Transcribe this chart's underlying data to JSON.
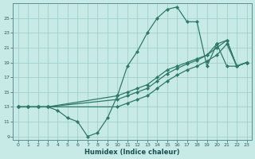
{
  "xlabel": "Humidex (Indice chaleur)",
  "background_color": "#c8eae6",
  "grid_color": "#a0d0cc",
  "line_color": "#2d7a6a",
  "marker": "D",
  "markersize": 2.2,
  "linewidth": 0.9,
  "xlim": [
    -0.5,
    23.5
  ],
  "ylim": [
    8.5,
    27
  ],
  "xticks": [
    0,
    1,
    2,
    3,
    4,
    5,
    6,
    7,
    8,
    9,
    10,
    11,
    12,
    13,
    14,
    15,
    16,
    17,
    18,
    19,
    20,
    21,
    22,
    23
  ],
  "yticks": [
    9,
    11,
    13,
    15,
    17,
    19,
    21,
    23,
    25
  ],
  "lines": [
    {
      "x": [
        0,
        1,
        2,
        3,
        4,
        5,
        6,
        7,
        8,
        9,
        10,
        11,
        12,
        13,
        14,
        15,
        16,
        17,
        18,
        19,
        20,
        21,
        22,
        23
      ],
      "y": [
        13,
        13,
        13,
        13,
        12.5,
        11.5,
        11,
        9,
        9.5,
        11.5,
        14.5,
        18.5,
        20.5,
        23,
        25,
        26.2,
        26.5,
        24.5,
        24.5,
        18.5,
        21.5,
        18.5,
        18.5,
        19
      ]
    },
    {
      "x": [
        0,
        1,
        2,
        3,
        10,
        11,
        12,
        13,
        14,
        15,
        16,
        17,
        18,
        19,
        20,
        21,
        22,
        23
      ],
      "y": [
        13,
        13,
        13,
        13,
        14.5,
        15,
        15.5,
        16,
        17,
        18,
        18.5,
        19,
        19.5,
        20,
        21.5,
        22,
        18.5,
        19
      ]
    },
    {
      "x": [
        0,
        1,
        2,
        3,
        10,
        11,
        12,
        13,
        14,
        15,
        16,
        17,
        18,
        19,
        20,
        21,
        22,
        23
      ],
      "y": [
        13,
        13,
        13,
        13,
        14,
        14.5,
        15,
        15.5,
        16.5,
        17.5,
        18.2,
        18.8,
        19.3,
        20,
        21,
        22,
        18.5,
        19
      ]
    },
    {
      "x": [
        0,
        1,
        2,
        3,
        10,
        11,
        12,
        13,
        14,
        15,
        16,
        17,
        18,
        19,
        20,
        21,
        22,
        23
      ],
      "y": [
        13,
        13,
        13,
        13,
        13,
        13.5,
        14,
        14.5,
        15.5,
        16.5,
        17.3,
        18,
        18.5,
        19.2,
        20,
        21.5,
        18.5,
        19
      ]
    }
  ]
}
